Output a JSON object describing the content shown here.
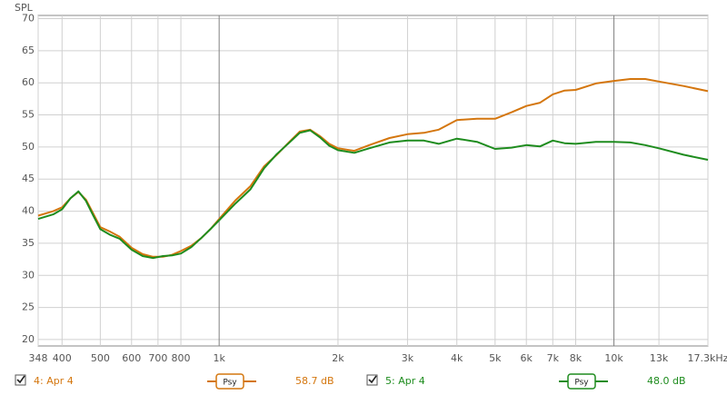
{
  "chart_data": {
    "type": "line",
    "y_label": "SPL",
    "log_x": true,
    "grid": true,
    "x": [
      348,
      380,
      400,
      420,
      440,
      460,
      480,
      500,
      530,
      560,
      600,
      640,
      680,
      720,
      760,
      800,
      850,
      900,
      950,
      1000,
      1100,
      1200,
      1300,
      1400,
      1500,
      1600,
      1700,
      1800,
      1900,
      2000,
      2200,
      2400,
      2700,
      3000,
      3300,
      3600,
      4000,
      4500,
      5000,
      5500,
      6000,
      6500,
      7000,
      7500,
      8000,
      9000,
      10000,
      11000,
      12000,
      13000,
      15000,
      17300
    ],
    "series": [
      {
        "name": "4: Apr 4",
        "color": "#d4760e",
        "smoothing": "Psy",
        "level": "58.7 dB",
        "values": [
          39.3,
          40.0,
          40.6,
          42.0,
          43.0,
          41.8,
          39.6,
          37.5,
          36.8,
          36.0,
          34.3,
          33.3,
          32.9,
          32.9,
          33.2,
          33.8,
          34.6,
          35.8,
          37.2,
          38.8,
          41.7,
          43.9,
          47.0,
          48.8,
          50.7,
          52.4,
          52.7,
          51.7,
          50.5,
          49.8,
          49.4,
          50.3,
          51.4,
          52.0,
          52.2,
          52.7,
          54.2,
          54.4,
          54.4,
          55.4,
          56.4,
          56.9,
          58.2,
          58.8,
          58.9,
          59.9,
          60.3,
          60.6,
          60.6,
          60.2,
          59.5,
          58.7
        ]
      },
      {
        "name": "5: Apr 4",
        "color": "#1e8c1e",
        "smoothing": "Psy",
        "level": "48.0 dB",
        "values": [
          38.8,
          39.5,
          40.3,
          42.0,
          43.1,
          41.6,
          39.3,
          37.2,
          36.3,
          35.7,
          34.0,
          33.0,
          32.7,
          33.0,
          33.1,
          33.4,
          34.4,
          35.8,
          37.2,
          38.6,
          41.2,
          43.4,
          46.7,
          48.9,
          50.6,
          52.2,
          52.6,
          51.5,
          50.2,
          49.5,
          49.1,
          49.8,
          50.7,
          51.0,
          51.0,
          50.5,
          51.3,
          50.8,
          49.7,
          49.9,
          50.3,
          50.1,
          51.0,
          50.6,
          50.5,
          50.8,
          50.8,
          50.7,
          50.3,
          49.8,
          48.8,
          48.0
        ]
      }
    ],
    "xlim": [
      348,
      17300
    ],
    "ylim": [
      19,
      70.5
    ],
    "xticks": [
      348,
      400,
      500,
      600,
      700,
      800,
      {
        "value": 1000,
        "label": "1k"
      },
      {
        "value": 2000,
        "label": "2k"
      },
      {
        "value": 3000,
        "label": "3k"
      },
      {
        "value": 4000,
        "label": "4k"
      },
      {
        "value": 5000,
        "label": "5k"
      },
      {
        "value": 6000,
        "label": "6k"
      },
      {
        "value": 7000,
        "label": "7k"
      },
      {
        "value": 8000,
        "label": "8k"
      },
      {
        "value": 10000,
        "label": "10k"
      },
      {
        "value": 13000,
        "label": "13k"
      },
      {
        "value": 17300,
        "label": "17.3kHz"
      }
    ],
    "yticks": [
      20,
      25,
      30,
      35,
      40,
      45,
      50,
      55,
      60,
      65,
      70
    ]
  }
}
